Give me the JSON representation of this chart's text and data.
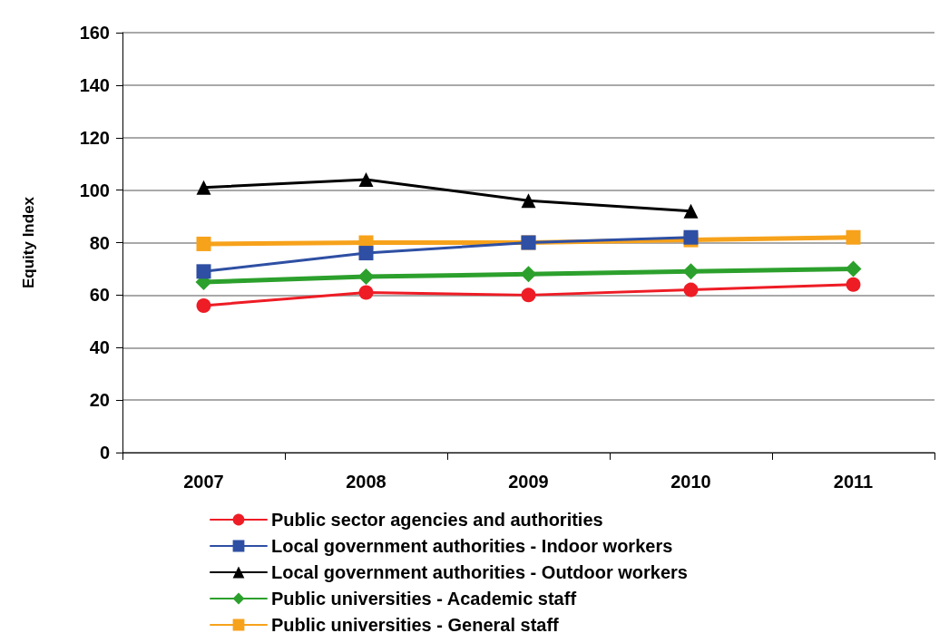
{
  "chart_data": {
    "type": "line",
    "ylabel": "Equity Index",
    "categories": [
      "2007",
      "2008",
      "2009",
      "2010",
      "2011"
    ],
    "ylim": [
      0,
      160
    ],
    "yticks": [
      0,
      20,
      40,
      60,
      80,
      100,
      120,
      140,
      160
    ],
    "grid": "y",
    "legend": "bottom",
    "series": [
      {
        "name": "Public sector agencies and authorities",
        "color": "#ee1c25",
        "marker": "circle",
        "values": [
          56,
          61,
          60,
          62,
          64
        ]
      },
      {
        "name": "Local government authorities - Indoor workers",
        "color": "#2e4fa3",
        "marker": "square",
        "values": [
          69,
          76,
          80,
          82,
          null
        ]
      },
      {
        "name": "Local government authorities - Outdoor workers",
        "color": "#000000",
        "marker": "triangle",
        "values": [
          101,
          104,
          96,
          92,
          null
        ]
      },
      {
        "name": "Public universities - Academic staff",
        "color": "#2ca02c",
        "marker": "diamond",
        "values": [
          65,
          67,
          68,
          69,
          70
        ]
      },
      {
        "name": "Public universities - General staff",
        "color": "#f7a21b",
        "marker": "square",
        "values": [
          79.5,
          80,
          80,
          81,
          82
        ]
      }
    ]
  }
}
